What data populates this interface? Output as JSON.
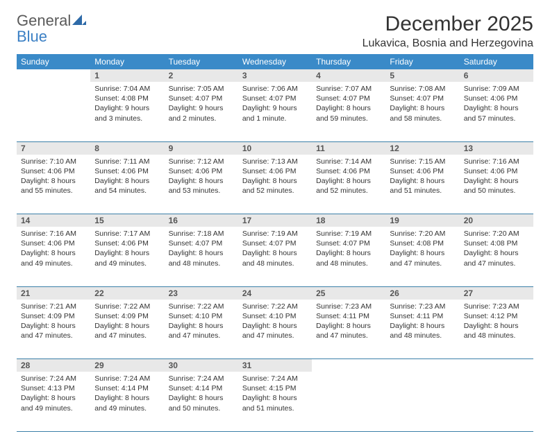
{
  "brand": {
    "word1": "General",
    "word2": "Blue"
  },
  "title": "December 2025",
  "location": "Lukavica, Bosnia and Herzegovina",
  "colors": {
    "header_bg": "#3a8ac8",
    "header_text": "#ffffff",
    "daynum_bg": "#e8e8e8",
    "border": "#3a7fa8",
    "brand_gray": "#5a5a5a",
    "brand_blue": "#3a7fc4"
  },
  "day_headers": [
    "Sunday",
    "Monday",
    "Tuesday",
    "Wednesday",
    "Thursday",
    "Friday",
    "Saturday"
  ],
  "weeks": [
    {
      "nums": [
        "",
        "1",
        "2",
        "3",
        "4",
        "5",
        "6"
      ],
      "cells": [
        null,
        {
          "sunrise": "7:04 AM",
          "sunset": "4:08 PM",
          "daylight": "9 hours and 3 minutes."
        },
        {
          "sunrise": "7:05 AM",
          "sunset": "4:07 PM",
          "daylight": "9 hours and 2 minutes."
        },
        {
          "sunrise": "7:06 AM",
          "sunset": "4:07 PM",
          "daylight": "9 hours and 1 minute."
        },
        {
          "sunrise": "7:07 AM",
          "sunset": "4:07 PM",
          "daylight": "8 hours and 59 minutes."
        },
        {
          "sunrise": "7:08 AM",
          "sunset": "4:07 PM",
          "daylight": "8 hours and 58 minutes."
        },
        {
          "sunrise": "7:09 AM",
          "sunset": "4:06 PM",
          "daylight": "8 hours and 57 minutes."
        }
      ]
    },
    {
      "nums": [
        "7",
        "8",
        "9",
        "10",
        "11",
        "12",
        "13"
      ],
      "cells": [
        {
          "sunrise": "7:10 AM",
          "sunset": "4:06 PM",
          "daylight": "8 hours and 55 minutes."
        },
        {
          "sunrise": "7:11 AM",
          "sunset": "4:06 PM",
          "daylight": "8 hours and 54 minutes."
        },
        {
          "sunrise": "7:12 AM",
          "sunset": "4:06 PM",
          "daylight": "8 hours and 53 minutes."
        },
        {
          "sunrise": "7:13 AM",
          "sunset": "4:06 PM",
          "daylight": "8 hours and 52 minutes."
        },
        {
          "sunrise": "7:14 AM",
          "sunset": "4:06 PM",
          "daylight": "8 hours and 52 minutes."
        },
        {
          "sunrise": "7:15 AM",
          "sunset": "4:06 PM",
          "daylight": "8 hours and 51 minutes."
        },
        {
          "sunrise": "7:16 AM",
          "sunset": "4:06 PM",
          "daylight": "8 hours and 50 minutes."
        }
      ]
    },
    {
      "nums": [
        "14",
        "15",
        "16",
        "17",
        "18",
        "19",
        "20"
      ],
      "cells": [
        {
          "sunrise": "7:16 AM",
          "sunset": "4:06 PM",
          "daylight": "8 hours and 49 minutes."
        },
        {
          "sunrise": "7:17 AM",
          "sunset": "4:06 PM",
          "daylight": "8 hours and 49 minutes."
        },
        {
          "sunrise": "7:18 AM",
          "sunset": "4:07 PM",
          "daylight": "8 hours and 48 minutes."
        },
        {
          "sunrise": "7:19 AM",
          "sunset": "4:07 PM",
          "daylight": "8 hours and 48 minutes."
        },
        {
          "sunrise": "7:19 AM",
          "sunset": "4:07 PM",
          "daylight": "8 hours and 48 minutes."
        },
        {
          "sunrise": "7:20 AM",
          "sunset": "4:08 PM",
          "daylight": "8 hours and 47 minutes."
        },
        {
          "sunrise": "7:20 AM",
          "sunset": "4:08 PM",
          "daylight": "8 hours and 47 minutes."
        }
      ]
    },
    {
      "nums": [
        "21",
        "22",
        "23",
        "24",
        "25",
        "26",
        "27"
      ],
      "cells": [
        {
          "sunrise": "7:21 AM",
          "sunset": "4:09 PM",
          "daylight": "8 hours and 47 minutes."
        },
        {
          "sunrise": "7:22 AM",
          "sunset": "4:09 PM",
          "daylight": "8 hours and 47 minutes."
        },
        {
          "sunrise": "7:22 AM",
          "sunset": "4:10 PM",
          "daylight": "8 hours and 47 minutes."
        },
        {
          "sunrise": "7:22 AM",
          "sunset": "4:10 PM",
          "daylight": "8 hours and 47 minutes."
        },
        {
          "sunrise": "7:23 AM",
          "sunset": "4:11 PM",
          "daylight": "8 hours and 47 minutes."
        },
        {
          "sunrise": "7:23 AM",
          "sunset": "4:11 PM",
          "daylight": "8 hours and 48 minutes."
        },
        {
          "sunrise": "7:23 AM",
          "sunset": "4:12 PM",
          "daylight": "8 hours and 48 minutes."
        }
      ]
    },
    {
      "nums": [
        "28",
        "29",
        "30",
        "31",
        "",
        "",
        ""
      ],
      "cells": [
        {
          "sunrise": "7:24 AM",
          "sunset": "4:13 PM",
          "daylight": "8 hours and 49 minutes."
        },
        {
          "sunrise": "7:24 AM",
          "sunset": "4:14 PM",
          "daylight": "8 hours and 49 minutes."
        },
        {
          "sunrise": "7:24 AM",
          "sunset": "4:14 PM",
          "daylight": "8 hours and 50 minutes."
        },
        {
          "sunrise": "7:24 AM",
          "sunset": "4:15 PM",
          "daylight": "8 hours and 51 minutes."
        },
        null,
        null,
        null
      ]
    }
  ],
  "labels": {
    "sunrise": "Sunrise:",
    "sunset": "Sunset:",
    "daylight": "Daylight:"
  }
}
